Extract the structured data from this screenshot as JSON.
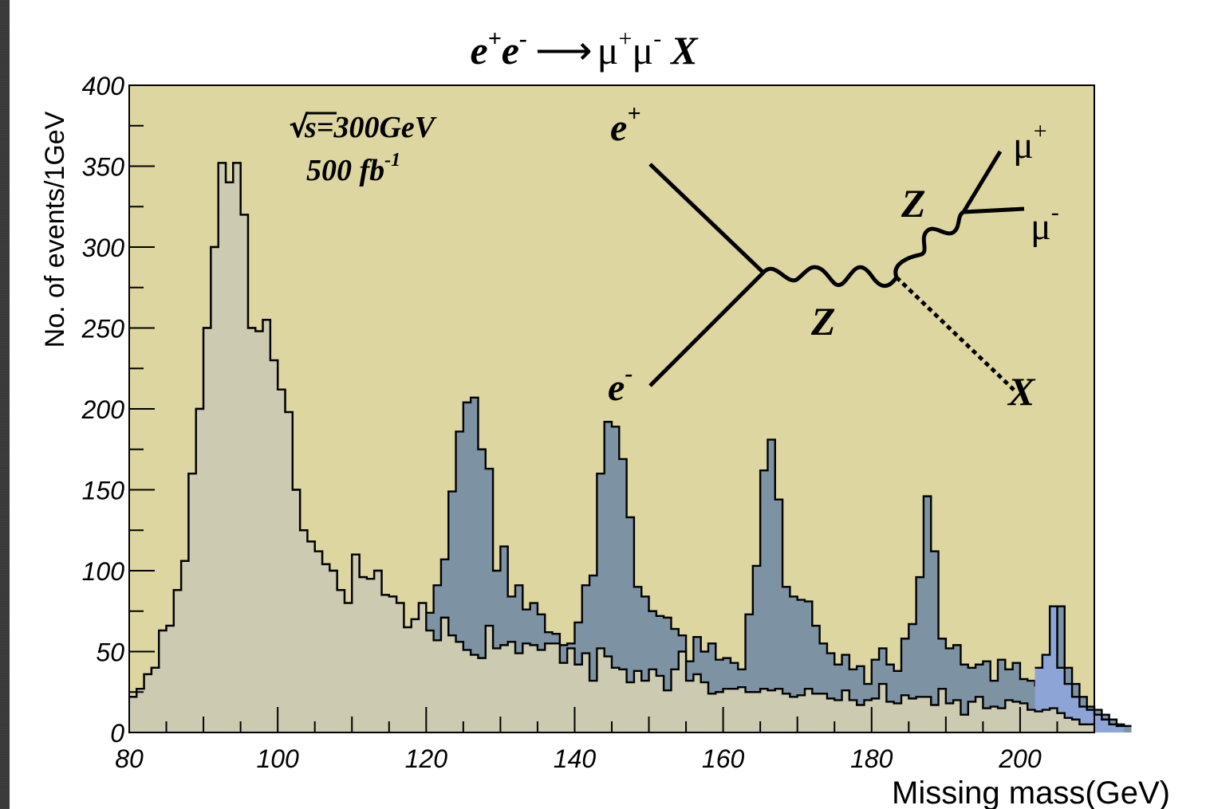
{
  "chart_data": {
    "type": "histogram",
    "title": {
      "part1": "e",
      "part1_sup": "+",
      "part2": "e",
      "part2_sup": "-",
      "arrow": "⟶",
      "part3": "μ",
      "part3_sup": "+",
      "part4": "μ",
      "part4_sup": "-",
      "part5": "X"
    },
    "xlabel": "Missing mass(GeV)",
    "ylabel": "No. of events/1GeV",
    "xlim": [
      80,
      210
    ],
    "ylim": [
      0,
      400
    ],
    "x_ticks": [
      "80",
      "100",
      "120",
      "140",
      "160",
      "180",
      "200"
    ],
    "y_ticks": [
      "0",
      "50",
      "100",
      "150",
      "200",
      "250",
      "300",
      "350",
      "400"
    ],
    "bin_width_gev": 1,
    "annotation": {
      "sqrt_symbol": "√",
      "energy": "s=300GeV",
      "luminosity": "500 fb",
      "luminosity_sup": "-1"
    },
    "diagram": {
      "e_plus": "e",
      "e_plus_sup": "+",
      "e_minus": "e",
      "e_minus_sup": "-",
      "z1": "Z",
      "z2": "Z",
      "mu_plus": "μ",
      "mu_plus_sup": "+",
      "mu_minus": "μ",
      "mu_minus_sup": "-",
      "x_label": "X"
    },
    "series": [
      {
        "role": "background",
        "color": "#cdcab2",
        "values": [
          22,
          27,
          36,
          40,
          63,
          66,
          88,
          106,
          160,
          200,
          250,
          300,
          352,
          340,
          352,
          320,
          250,
          248,
          255,
          230,
          212,
          198,
          150,
          125,
          118,
          112,
          104,
          100,
          88,
          80,
          110,
          96,
          95,
          100,
          85,
          84,
          80,
          65,
          70,
          80,
          63,
          57,
          71,
          60,
          56,
          51,
          48,
          46,
          66,
          52,
          54,
          56,
          49,
          55,
          54,
          51,
          55,
          55,
          43,
          52,
          42,
          49,
          32,
          52,
          47,
          40,
          39,
          31,
          38,
          32,
          39,
          35,
          26,
          39,
          50,
          32,
          36,
          31,
          24,
          25,
          27,
          27,
          28,
          25,
          25,
          27,
          26,
          27,
          24,
          22,
          23,
          27,
          24,
          24,
          21,
          20,
          26,
          20,
          17,
          20,
          21,
          30,
          19,
          18,
          23,
          21,
          22,
          22,
          17,
          27,
          18,
          20,
          11,
          19,
          22,
          15,
          16,
          15,
          20,
          19,
          18,
          14,
          13,
          14,
          15,
          12,
          9,
          8,
          5,
          5
        ]
      },
      {
        "role": "signal",
        "color": "#7d92a2",
        "values": [
          22,
          27,
          36,
          40,
          63,
          66,
          88,
          106,
          160,
          200,
          250,
          300,
          352,
          340,
          352,
          320,
          250,
          248,
          255,
          230,
          212,
          198,
          150,
          125,
          118,
          112,
          104,
          100,
          88,
          80,
          110,
          96,
          95,
          100,
          85,
          84,
          80,
          65,
          70,
          80,
          74,
          91,
          107,
          149,
          186,
          204,
          207,
          175,
          163,
          100,
          115,
          84,
          91,
          76,
          80,
          73,
          62,
          61,
          54,
          55,
          68,
          91,
          97,
          160,
          192,
          189,
          169,
          133,
          90,
          84,
          75,
          72,
          71,
          64,
          60,
          44,
          59,
          50,
          55,
          45,
          46,
          43,
          39,
          73,
          103,
          162,
          181,
          144,
          90,
          84,
          82,
          81,
          66,
          55,
          49,
          42,
          48,
          39,
          41,
          30,
          45,
          52,
          42,
          38,
          58,
          67,
          96,
          146,
          112,
          58,
          52,
          54,
          42,
          40,
          42,
          44,
          32,
          45,
          39,
          43,
          33,
          32,
          29,
          24,
          48,
          78,
          40,
          30,
          22,
          16,
          14,
          11,
          8,
          5,
          4
        ]
      },
      {
        "role": "signal-200",
        "color": "#8ca4d6",
        "values": [
          0,
          0,
          0,
          0,
          0,
          0,
          0,
          0,
          0,
          0,
          0,
          0,
          0,
          0,
          0,
          0,
          0,
          0,
          0,
          0,
          0,
          0,
          0,
          0,
          0,
          0,
          0,
          0,
          0,
          0,
          0,
          0,
          0,
          0,
          0,
          0,
          0,
          0,
          0,
          0,
          0,
          0,
          0,
          0,
          0,
          0,
          0,
          0,
          0,
          0,
          0,
          0,
          0,
          0,
          0,
          0,
          0,
          0,
          0,
          0,
          0,
          0,
          0,
          0,
          0,
          0,
          0,
          0,
          0,
          0,
          0,
          0,
          0,
          0,
          0,
          0,
          0,
          0,
          0,
          0,
          0,
          0,
          0,
          0,
          0,
          0,
          0,
          0,
          0,
          0,
          0,
          0,
          0,
          0,
          0,
          0,
          0,
          0,
          0,
          0,
          0,
          0,
          0,
          0,
          0,
          0,
          0,
          0,
          0,
          0,
          0,
          0,
          0,
          0,
          0,
          0,
          0,
          0,
          0,
          0,
          0,
          0,
          40,
          48,
          78,
          40,
          30,
          22,
          16,
          14,
          11,
          8,
          5,
          4
        ]
      }
    ],
    "colors": {
      "plot_bg": "#ded6a0",
      "background_fill": "#cdcab2",
      "signal_fill": "#7d92a2",
      "signal_200_fill": "#8ca4d6",
      "line": "#000000"
    },
    "legend": "none",
    "grid": false
  }
}
